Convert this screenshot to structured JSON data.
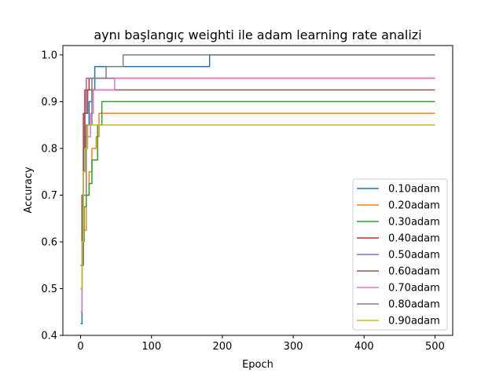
{
  "chart_data": {
    "type": "line",
    "title": "aynı başlangıç weighti ile adam learning rate analizi",
    "xlabel": "Epoch",
    "ylabel": "Accuracy",
    "xlim": [
      -25,
      525
    ],
    "ylim": [
      0.4,
      1.02
    ],
    "xticks": [
      0,
      100,
      200,
      300,
      400,
      500
    ],
    "yticks": [
      0.4,
      0.5,
      0.6,
      0.7,
      0.8,
      0.9,
      1.0
    ],
    "xtick_labels": [
      "0",
      "100",
      "200",
      "300",
      "400",
      "500"
    ],
    "ytick_labels": [
      "0.4",
      "0.5",
      "0.6",
      "0.7",
      "0.8",
      "0.9",
      "1.0"
    ],
    "legend_position": "lower-right",
    "grid": false,
    "series": [
      {
        "name": "0.10adam",
        "color": "#1f77b4",
        "x": [
          0,
          1,
          2,
          4,
          6,
          8,
          12,
          16,
          20,
          180,
          182,
          500
        ],
        "y": [
          0.425,
          0.425,
          0.6,
          0.75,
          0.825,
          0.85,
          0.9,
          0.925,
          0.975,
          0.975,
          1.0,
          1.0
        ]
      },
      {
        "name": "0.20adam",
        "color": "#ff7f0e",
        "x": [
          0,
          2,
          4,
          8,
          12,
          16,
          22,
          26,
          500
        ],
        "y": [
          0.5,
          0.55,
          0.625,
          0.7,
          0.75,
          0.8,
          0.825,
          0.875,
          0.875
        ]
      },
      {
        "name": "0.30adam",
        "color": "#2ca02c",
        "x": [
          0,
          2,
          5,
          8,
          12,
          16,
          24,
          30,
          500
        ],
        "y": [
          0.55,
          0.6,
          0.675,
          0.7,
          0.725,
          0.775,
          0.85,
          0.9,
          0.9
        ]
      },
      {
        "name": "0.40adam",
        "color": "#d62728",
        "x": [
          0,
          2,
          4,
          6,
          12,
          500
        ],
        "y": [
          0.55,
          0.7,
          0.875,
          0.925,
          0.95,
          0.95
        ]
      },
      {
        "name": "0.50adam",
        "color": "#9467bd",
        "x": [
          0,
          2,
          4,
          6,
          8,
          500
        ],
        "y": [
          0.5,
          0.6,
          0.8,
          0.875,
          0.95,
          0.95
        ]
      },
      {
        "name": "0.60adam",
        "color": "#8c564b",
        "x": [
          0,
          2,
          4,
          6,
          10,
          500
        ],
        "y": [
          0.55,
          0.7,
          0.8,
          0.875,
          0.925,
          0.925
        ]
      },
      {
        "name": "0.70adam",
        "color": "#e377c2",
        "x": [
          0,
          2,
          4,
          8,
          14,
          18,
          48,
          500
        ],
        "y": [
          0.45,
          0.55,
          0.75,
          0.825,
          0.875,
          0.925,
          0.95,
          0.95
        ]
      },
      {
        "name": "0.80adam",
        "color": "#7f7f7f",
        "x": [
          0,
          2,
          4,
          8,
          16,
          36,
          60,
          500
        ],
        "y": [
          0.5,
          0.55,
          0.7,
          0.85,
          0.95,
          0.975,
          1.0,
          1.0
        ]
      },
      {
        "name": "0.90adam",
        "color": "#bcbd22",
        "x": [
          0,
          2,
          4,
          6,
          10,
          500
        ],
        "y": [
          0.5,
          0.6,
          0.75,
          0.8,
          0.85,
          0.85
        ]
      }
    ]
  }
}
